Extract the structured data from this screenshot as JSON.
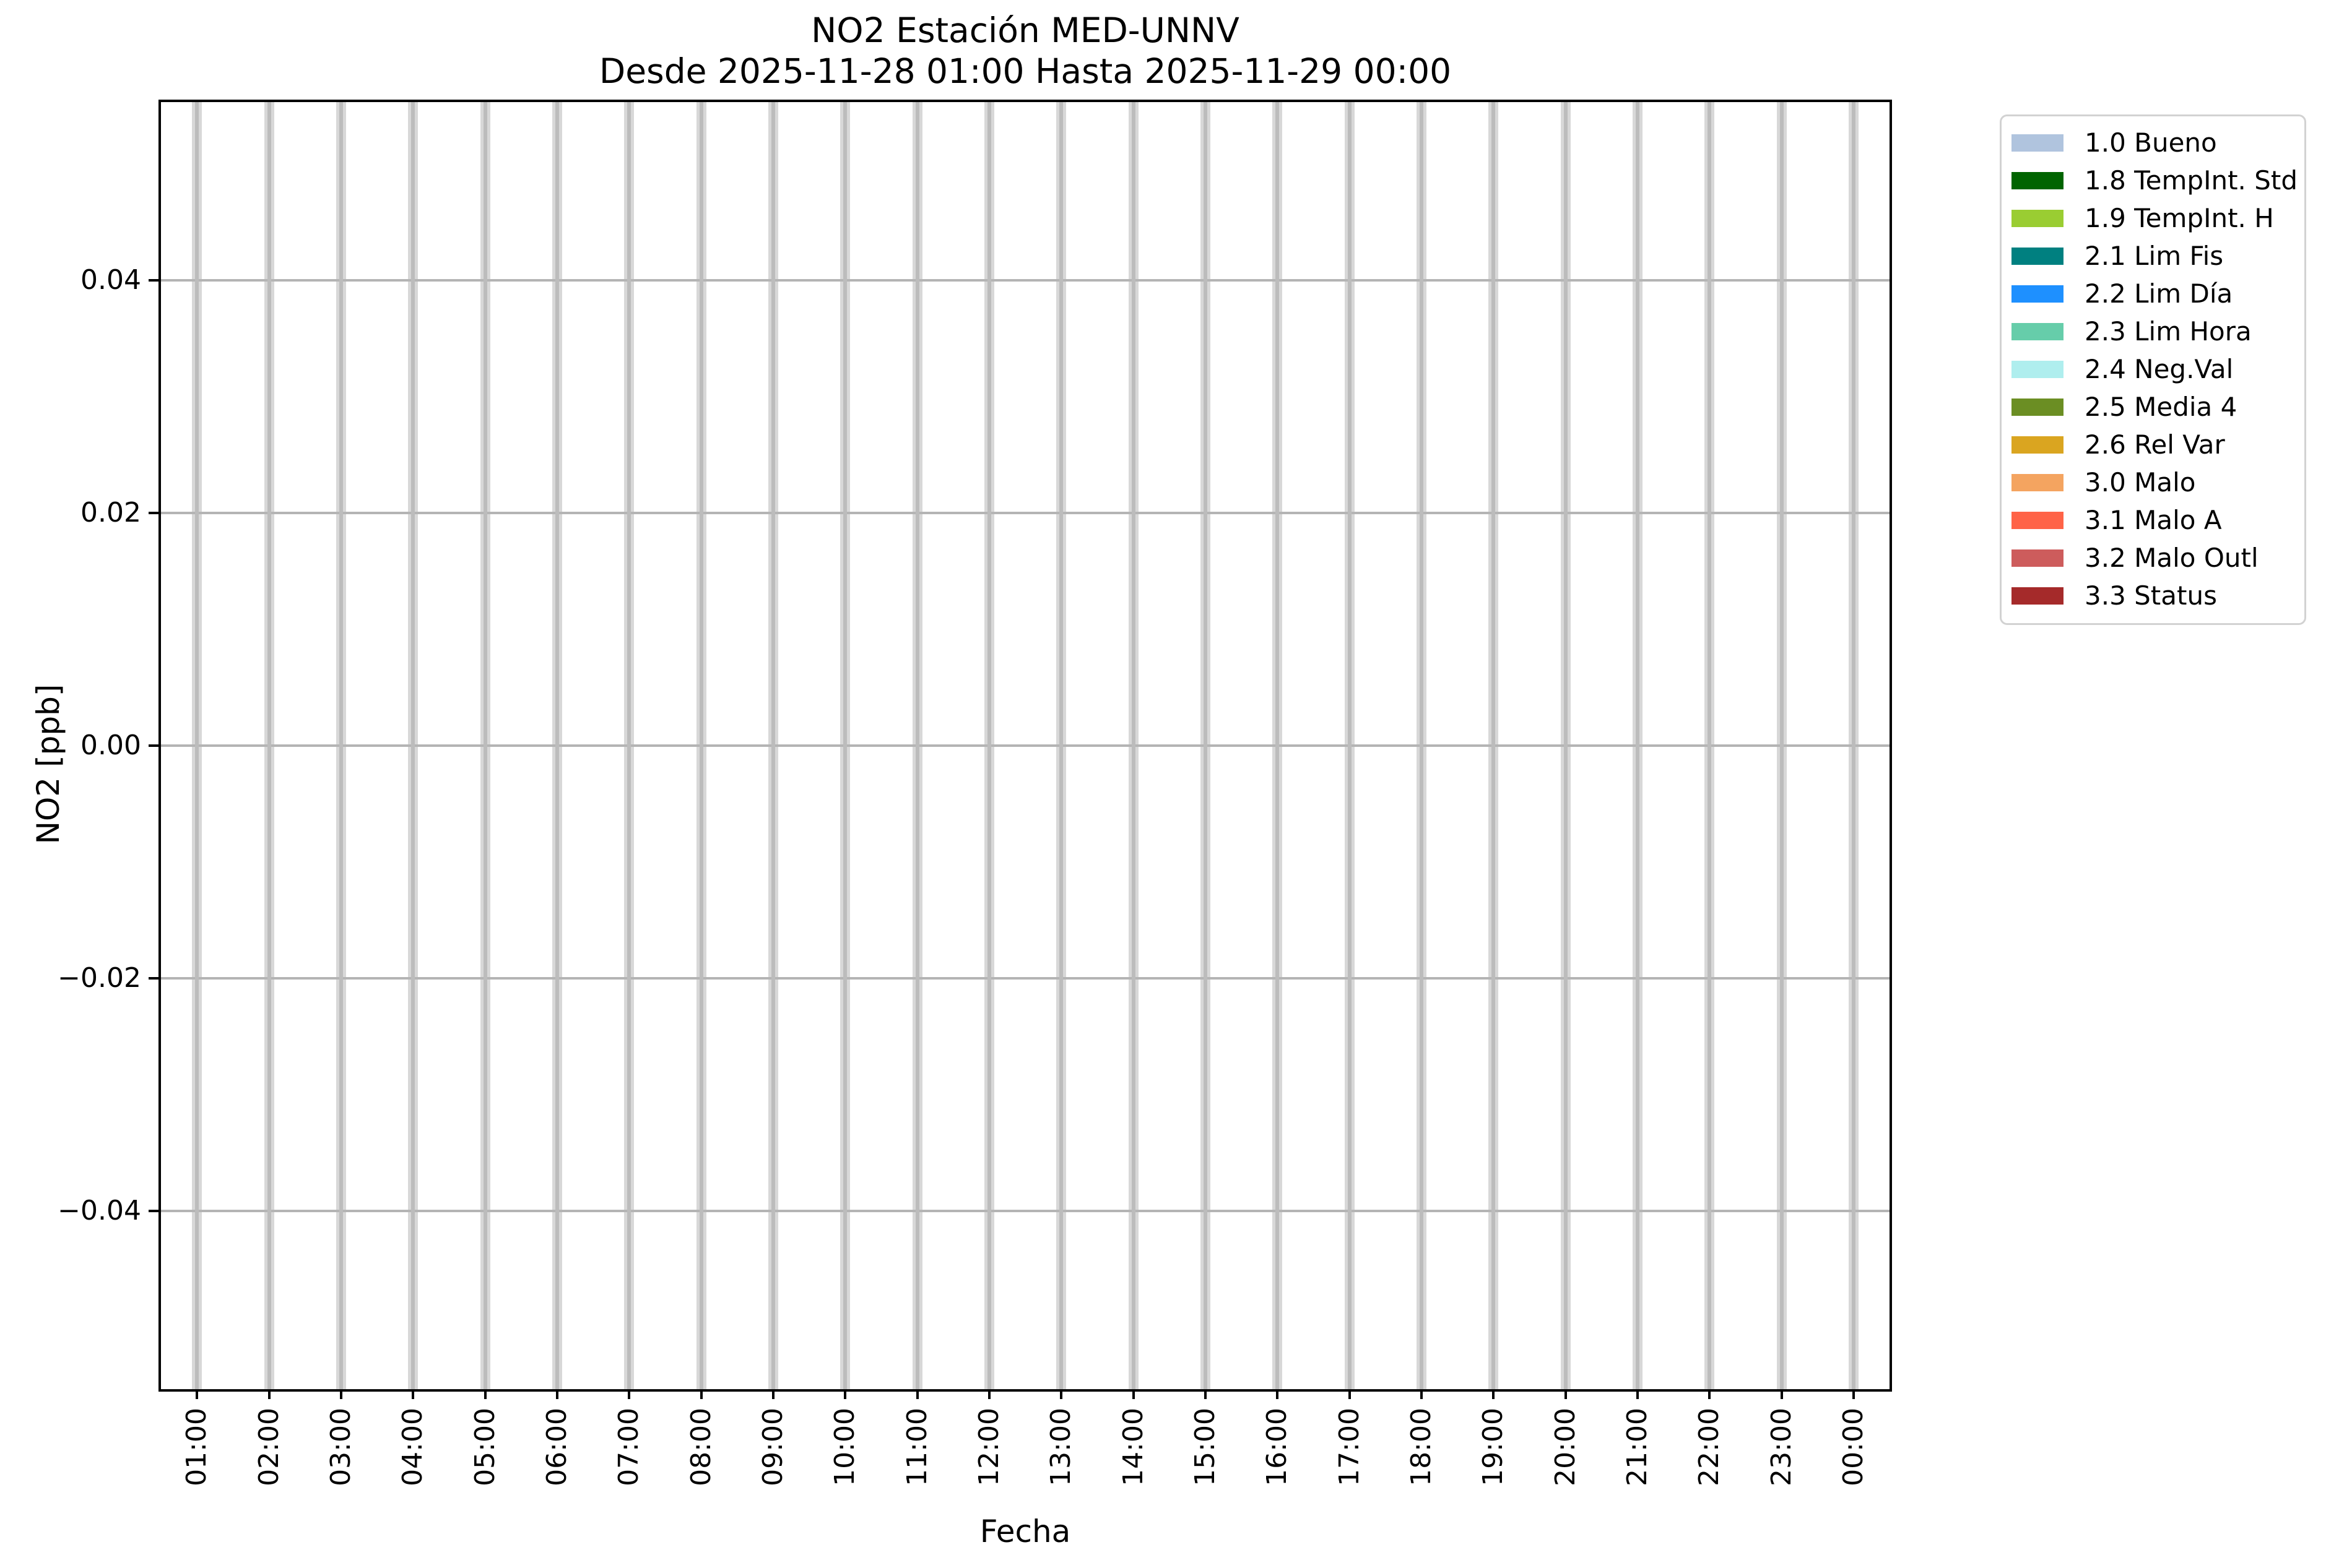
{
  "figure": {
    "title": "NO2 Estación MED-UNNV",
    "subtitle": "Desde 2025-11-28 01:00 Hasta 2025-11-29 00:00",
    "xlabel": "Fecha",
    "ylabel": "NO2 [ppb]"
  },
  "chart_data": {
    "type": "bar",
    "title": "NO2 Estación MED-UNNV",
    "subtitle": "Desde 2025-11-28 01:00 Hasta 2025-11-29 00:00",
    "xlabel": "Fecha",
    "ylabel": "NO2 [ppb]",
    "categories": [
      "01:00",
      "02:00",
      "03:00",
      "04:00",
      "05:00",
      "06:00",
      "07:00",
      "08:00",
      "09:00",
      "10:00",
      "11:00",
      "12:00",
      "13:00",
      "14:00",
      "15:00",
      "16:00",
      "17:00",
      "18:00",
      "19:00",
      "20:00",
      "21:00",
      "22:00",
      "23:00",
      "00:00"
    ],
    "values": [
      null,
      null,
      null,
      null,
      null,
      null,
      null,
      null,
      null,
      null,
      null,
      null,
      null,
      null,
      null,
      null,
      null,
      null,
      null,
      null,
      null,
      null,
      null,
      null
    ],
    "xlim": [
      -0.5,
      23.5
    ],
    "ylim": [
      -0.0553,
      0.0553
    ],
    "yticks": [
      0.04,
      0.02,
      0.0,
      -0.02,
      -0.04
    ],
    "ytick_labels": [
      "0.04",
      "0.02",
      "0.00",
      "−0.02",
      "−0.04"
    ],
    "xtick_rotation": 90,
    "grid": true,
    "legend_position": "outside upper right",
    "legend": [
      {
        "label": "1.0 Bueno",
        "color": "#b0c4de"
      },
      {
        "label": "1.8 TempInt. Std",
        "color": "#006400"
      },
      {
        "label": "1.9 TempInt. H",
        "color": "#9acd32"
      },
      {
        "label": "2.1 Lim Fis",
        "color": "#008080"
      },
      {
        "label": "2.2 Lim Día",
        "color": "#1e90ff"
      },
      {
        "label": "2.3 Lim Hora",
        "color": "#66cdaa"
      },
      {
        "label": "2.4 Neg.Val",
        "color": "#afeeee"
      },
      {
        "label": "2.5 Media 4",
        "color": "#6b8e23"
      },
      {
        "label": "2.6 Rel Var",
        "color": "#daa520"
      },
      {
        "label": "3.0 Malo",
        "color": "#f4a460"
      },
      {
        "label": "3.1 Malo A",
        "color": "#ff6347"
      },
      {
        "label": "3.2 Malo Outl",
        "color": "#cd5c5c"
      },
      {
        "label": "3.3 Status",
        "color": "#a52a2a"
      }
    ]
  },
  "colors": {
    "background": "#ffffff",
    "spine": "#000000",
    "hour_band": "#d8d8d8",
    "hour_band_center": "#bcbcbc",
    "gridline": "#b4b4b4",
    "legend_border": "#d2d2d2",
    "text": "#000000"
  }
}
